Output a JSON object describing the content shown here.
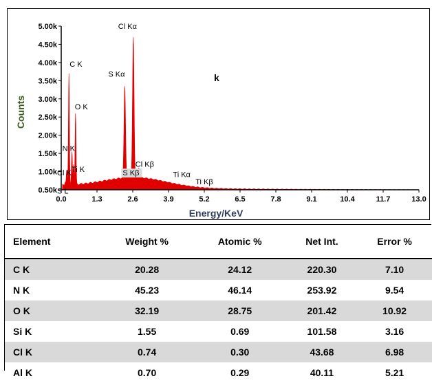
{
  "chart_data": {
    "type": "line",
    "panel_label": "k",
    "xlabel": "Energy/KeV",
    "ylabel": "Counts",
    "x_ticks": [
      "0.0",
      "1.3",
      "2.6",
      "3.9",
      "5.2",
      "6.5",
      "7.8",
      "9.1",
      "10.4",
      "11.7",
      "13.0"
    ],
    "y_ticks": [
      "0.50k",
      "1.00k",
      "1.50k",
      "2.00k",
      "2.50k",
      "3.00k",
      "3.50k",
      "4.00k",
      "4.50k",
      "5.00k"
    ],
    "xlim": [
      0,
      13
    ],
    "ylim": [
      0.5,
      5.0
    ],
    "series_color": "#e00000",
    "peaks": [
      {
        "label": "C K",
        "x": 0.28,
        "y": 3.7
      },
      {
        "label": "O K",
        "x": 0.52,
        "y": 2.6
      },
      {
        "label": "N K",
        "x": 0.39,
        "y": 1.55
      },
      {
        "label": "Ti K",
        "x": 0.45,
        "y": 1.2
      },
      {
        "label": "Cl K",
        "x": 0.2,
        "y": 1.05
      },
      {
        "label": "S L",
        "x": 0.15,
        "y": 0.72
      },
      {
        "label": "S Kα",
        "x": 2.31,
        "y": 3.35
      },
      {
        "label": "Cl Kα",
        "x": 2.62,
        "y": 4.7
      },
      {
        "label": "S Kβ",
        "x": 2.46,
        "y": 0.95
      },
      {
        "label": "Cl Kβ",
        "x": 2.82,
        "y": 1.1
      },
      {
        "label": "Ti Kα",
        "x": 4.51,
        "y": 0.62
      },
      {
        "label": "Ti Kβ",
        "x": 4.93,
        "y": 0.58
      }
    ]
  },
  "table": {
    "headers": [
      "Element",
      "Weight %",
      "Atomic %",
      "Net Int.",
      "Error %"
    ],
    "rows": [
      [
        "C K",
        "20.28",
        "24.12",
        "220.30",
        "7.10"
      ],
      [
        "N K",
        "45.23",
        "46.14",
        "253.92",
        "9.54"
      ],
      [
        "O K",
        "32.19",
        "28.75",
        "201.42",
        "10.92"
      ],
      [
        "Si K",
        "1.55",
        "0.69",
        "101.58",
        "3.16"
      ],
      [
        "Cl K",
        "0.74",
        "0.30",
        "43.68",
        "6.98"
      ],
      [
        "Al K",
        "0.70",
        "0.29",
        "40.11",
        "5.21"
      ]
    ]
  }
}
